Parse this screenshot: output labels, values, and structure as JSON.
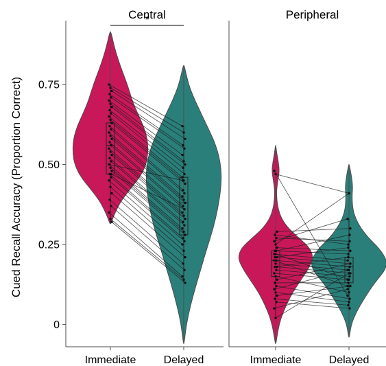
{
  "chart_data": {
    "type": "violin",
    "ylabel": "Cued Recall Accuracy (Proportion Correct)",
    "ylim": [
      -0.07,
      0.95
    ],
    "yticks": [
      0,
      0.25,
      0.5,
      0.75
    ],
    "ytick_labels": [
      "0",
      "0.25",
      "0.50",
      "0.75"
    ],
    "categories": [
      "Immediate",
      "Delayed"
    ],
    "colors": {
      "Immediate": "#c8185a",
      "Delayed": "#2a7f7a"
    },
    "panels": [
      {
        "title": "Central",
        "significance": {
          "label": "*",
          "y": 0.935
        },
        "box": {
          "Immediate": {
            "q1": 0.47,
            "median": 0.56,
            "q3": 0.63,
            "whisker_low": 0.32,
            "whisker_high": 0.75
          },
          "Delayed": {
            "q1": 0.28,
            "median": 0.38,
            "q3": 0.46,
            "whisker_low": 0.13,
            "whisker_high": 0.62
          }
        },
        "violin": {
          "Immediate": [
            [
              0.315,
              0.015
            ],
            [
              0.34,
              0.09
            ],
            [
              0.38,
              0.25
            ],
            [
              0.42,
              0.5
            ],
            [
              0.46,
              0.78
            ],
            [
              0.5,
              0.95
            ],
            [
              0.54,
              1.0
            ],
            [
              0.58,
              0.98
            ],
            [
              0.62,
              0.88
            ],
            [
              0.66,
              0.72
            ],
            [
              0.7,
              0.58
            ],
            [
              0.75,
              0.45
            ],
            [
              0.79,
              0.32
            ],
            [
              0.83,
              0.2
            ],
            [
              0.87,
              0.1
            ],
            [
              0.915,
              0.015
            ]
          ],
          "Delayed": [
            [
              -0.06,
              0.01
            ],
            [
              0.0,
              0.07
            ],
            [
              0.06,
              0.18
            ],
            [
              0.12,
              0.32
            ],
            [
              0.18,
              0.47
            ],
            [
              0.24,
              0.62
            ],
            [
              0.3,
              0.78
            ],
            [
              0.36,
              0.9
            ],
            [
              0.42,
              0.98
            ],
            [
              0.47,
              1.0
            ],
            [
              0.52,
              0.95
            ],
            [
              0.57,
              0.82
            ],
            [
              0.62,
              0.62
            ],
            [
              0.67,
              0.42
            ],
            [
              0.71,
              0.26
            ],
            [
              0.75,
              0.13
            ],
            [
              0.79,
              0.05
            ],
            [
              0.81,
              0.01
            ]
          ]
        },
        "pairs": [
          [
            0.75,
            0.62
          ],
          [
            0.74,
            0.6
          ],
          [
            0.73,
            0.58
          ],
          [
            0.72,
            0.56
          ],
          [
            0.71,
            0.55
          ],
          [
            0.7,
            0.53
          ],
          [
            0.69,
            0.51
          ],
          [
            0.68,
            0.5
          ],
          [
            0.67,
            0.49
          ],
          [
            0.66,
            0.47
          ],
          [
            0.65,
            0.46
          ],
          [
            0.64,
            0.45
          ],
          [
            0.63,
            0.44
          ],
          [
            0.62,
            0.42
          ],
          [
            0.61,
            0.41
          ],
          [
            0.6,
            0.4
          ],
          [
            0.59,
            0.39
          ],
          [
            0.58,
            0.38
          ],
          [
            0.57,
            0.37
          ],
          [
            0.56,
            0.36
          ],
          [
            0.55,
            0.35
          ],
          [
            0.54,
            0.34
          ],
          [
            0.53,
            0.33
          ],
          [
            0.52,
            0.32
          ],
          [
            0.51,
            0.31
          ],
          [
            0.5,
            0.3
          ],
          [
            0.49,
            0.29
          ],
          [
            0.48,
            0.28
          ],
          [
            0.47,
            0.27
          ],
          [
            0.46,
            0.26
          ],
          [
            0.45,
            0.25
          ],
          [
            0.43,
            0.23
          ],
          [
            0.41,
            0.21
          ],
          [
            0.39,
            0.19
          ],
          [
            0.37,
            0.17
          ],
          [
            0.35,
            0.15
          ],
          [
            0.33,
            0.14
          ],
          [
            0.32,
            0.13
          ],
          [
            0.5,
            0.45
          ],
          [
            0.47,
            0.36
          ]
        ]
      },
      {
        "title": "Peripheral",
        "box": {
          "Immediate": {
            "q1": 0.15,
            "median": 0.2,
            "q3": 0.23,
            "whisker_low": 0.02,
            "whisker_high": 0.29
          },
          "Delayed": {
            "q1": 0.13,
            "median": 0.18,
            "q3": 0.21,
            "whisker_low": 0.05,
            "whisker_high": 0.33
          }
        },
        "violin": {
          "Immediate": [
            [
              -0.06,
              0.01
            ],
            [
              -0.02,
              0.06
            ],
            [
              0.02,
              0.14
            ],
            [
              0.06,
              0.28
            ],
            [
              0.1,
              0.45
            ],
            [
              0.14,
              0.68
            ],
            [
              0.18,
              0.9
            ],
            [
              0.21,
              1.0
            ],
            [
              0.24,
              0.9
            ],
            [
              0.27,
              0.62
            ],
            [
              0.3,
              0.34
            ],
            [
              0.33,
              0.16
            ],
            [
              0.36,
              0.07
            ],
            [
              0.39,
              0.03
            ],
            [
              0.42,
              0.025
            ],
            [
              0.45,
              0.06
            ],
            [
              0.48,
              0.1
            ],
            [
              0.51,
              0.07
            ],
            [
              0.535,
              0.03
            ],
            [
              0.56,
              0.005
            ]
          ],
          "Delayed": [
            [
              -0.04,
              0.01
            ],
            [
              0.0,
              0.06
            ],
            [
              0.04,
              0.2
            ],
            [
              0.08,
              0.4
            ],
            [
              0.12,
              0.62
            ],
            [
              0.15,
              0.82
            ],
            [
              0.17,
              0.95
            ],
            [
              0.19,
              1.0
            ],
            [
              0.21,
              0.96
            ],
            [
              0.24,
              0.78
            ],
            [
              0.27,
              0.52
            ],
            [
              0.3,
              0.32
            ],
            [
              0.33,
              0.18
            ],
            [
              0.36,
              0.1
            ],
            [
              0.4,
              0.08
            ],
            [
              0.43,
              0.1
            ],
            [
              0.46,
              0.07
            ],
            [
              0.48,
              0.04
            ],
            [
              0.5,
              0.005
            ]
          ]
        },
        "pairs": [
          [
            0.48,
            0.09
          ],
          [
            0.47,
            0.41
          ],
          [
            0.29,
            0.3
          ],
          [
            0.28,
            0.25
          ],
          [
            0.27,
            0.26
          ],
          [
            0.26,
            0.33
          ],
          [
            0.25,
            0.41
          ],
          [
            0.24,
            0.23
          ],
          [
            0.23,
            0.22
          ],
          [
            0.23,
            0.28
          ],
          [
            0.22,
            0.2
          ],
          [
            0.22,
            0.14
          ],
          [
            0.21,
            0.19
          ],
          [
            0.21,
            0.24
          ],
          [
            0.2,
            0.18
          ],
          [
            0.2,
            0.12
          ],
          [
            0.19,
            0.17
          ],
          [
            0.18,
            0.16
          ],
          [
            0.18,
            0.21
          ],
          [
            0.17,
            0.15
          ],
          [
            0.16,
            0.14
          ],
          [
            0.15,
            0.1
          ],
          [
            0.14,
            0.19
          ],
          [
            0.13,
            0.13
          ],
          [
            0.12,
            0.08
          ],
          [
            0.11,
            0.17
          ],
          [
            0.1,
            0.07
          ],
          [
            0.09,
            0.12
          ],
          [
            0.08,
            0.06
          ],
          [
            0.07,
            0.05
          ],
          [
            0.05,
            0.11
          ],
          [
            0.02,
            0.16
          ]
        ]
      }
    ]
  }
}
